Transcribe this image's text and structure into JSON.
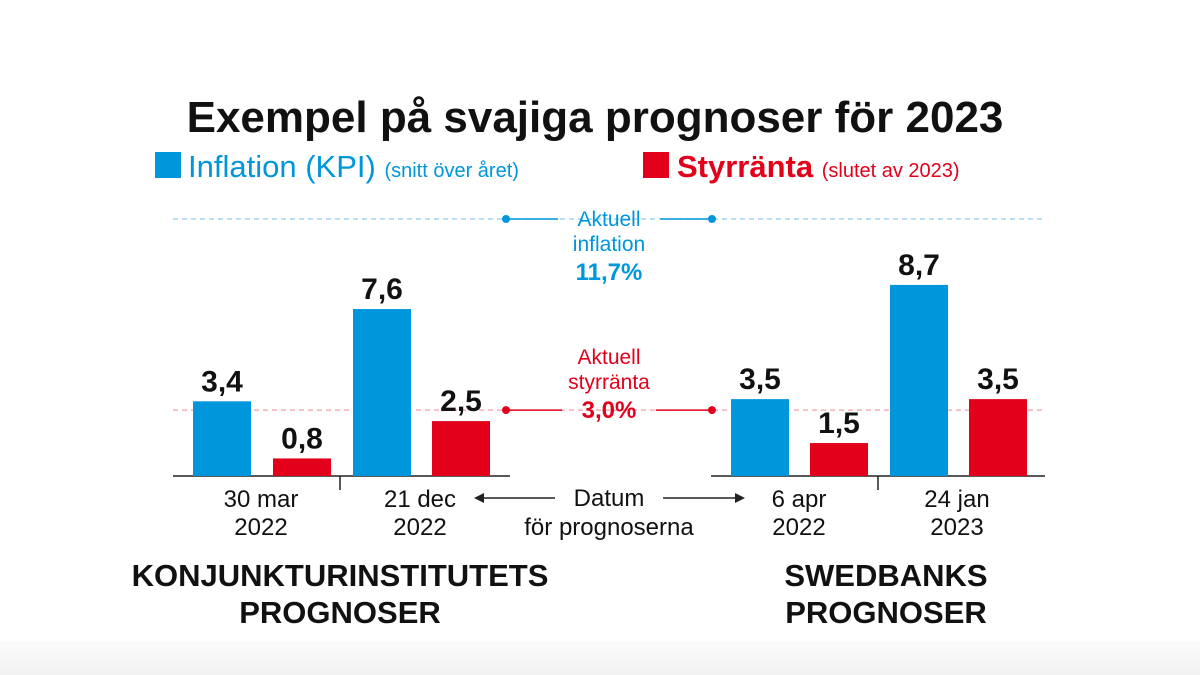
{
  "chart_data": {
    "type": "bar",
    "title": "Exempel på svajiga prognoser för 2023",
    "legend": [
      {
        "name": "Inflation",
        "unit": "(KPI)",
        "note": "(snitt över året)",
        "color": "#0096dc"
      },
      {
        "name": "Styrränta",
        "unit": "",
        "note": "(slutet av 2023)",
        "color": "#e2001a"
      }
    ],
    "groups": [
      {
        "name": "KONJUNKTURINSTITUTETS PROGNOSER",
        "name_lines": [
          "KONJUNKTURINSTITUTETS",
          "PROGNOSER"
        ],
        "categories": [
          {
            "date_lines": [
              "30 mar",
              "2022"
            ],
            "inflation": 3.4,
            "styrranta": 0.8,
            "inflation_label": "3,4",
            "styrranta_label": "0,8"
          },
          {
            "date_lines": [
              "21 dec",
              "2022"
            ],
            "inflation": 7.6,
            "styrranta": 2.5,
            "inflation_label": "7,6",
            "styrranta_label": "2,5"
          }
        ]
      },
      {
        "name": "SWEDBANKS PROGNOSER",
        "name_lines": [
          "SWEDBANKS",
          "PROGNOSER"
        ],
        "categories": [
          {
            "date_lines": [
              "6 apr",
              "2022"
            ],
            "inflation": 3.5,
            "styrranta": 1.5,
            "inflation_label": "3,5",
            "styrranta_label": "1,5"
          },
          {
            "date_lines": [
              "24 jan",
              "2023"
            ],
            "inflation": 8.7,
            "styrranta": 3.5,
            "inflation_label": "8,7",
            "styrranta_label": "3,5"
          }
        ]
      }
    ],
    "reference_lines": [
      {
        "label_lines": [
          "Aktuell",
          "inflation"
        ],
        "value": 11.7,
        "value_label": "11,7%",
        "color": "#0096dc"
      },
      {
        "label_lines": [
          "Aktuell",
          "styrränta"
        ],
        "value": 3.0,
        "value_label": "3,0%",
        "color": "#e2001a"
      }
    ],
    "center_note_lines": [
      "Datum",
      "för prognoserna"
    ],
    "ylim": [
      0,
      11.7
    ],
    "grid": false
  }
}
